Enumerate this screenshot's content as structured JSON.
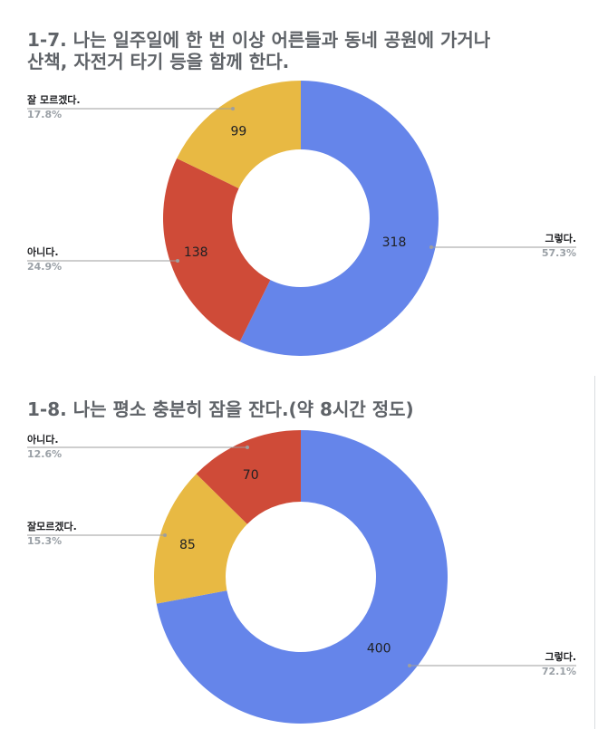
{
  "chart_data": [
    {
      "type": "pie",
      "donut": true,
      "title": "1-7. 나는 일주일에 한 번 이상 어른들과 동네 공원에 가거나\n산책, 자전거 타기 등을 함께 한다.",
      "slices": [
        {
          "name": "그렇다.",
          "value": 318,
          "percent": "57.3%",
          "color": "#6585ea"
        },
        {
          "name": "아니다.",
          "value": 138,
          "percent": "24.9%",
          "color": "#cf4b38"
        },
        {
          "name": "잘 모르겠다.",
          "value": 99,
          "percent": "17.8%",
          "color": "#e8b943"
        }
      ]
    },
    {
      "type": "pie",
      "donut": true,
      "title": "1-8. 나는 평소 충분히 잠을 잔다.(약 8시간 정도)",
      "slices": [
        {
          "name": "그렇다.",
          "value": 400,
          "percent": "72.1%",
          "color": "#6585ea"
        },
        {
          "name": "잘모르겠다.",
          "value": 85,
          "percent": "15.3%",
          "color": "#e8b943"
        },
        {
          "name": "아니다.",
          "value": 70,
          "percent": "12.6%",
          "color": "#cf4b38"
        }
      ]
    }
  ]
}
